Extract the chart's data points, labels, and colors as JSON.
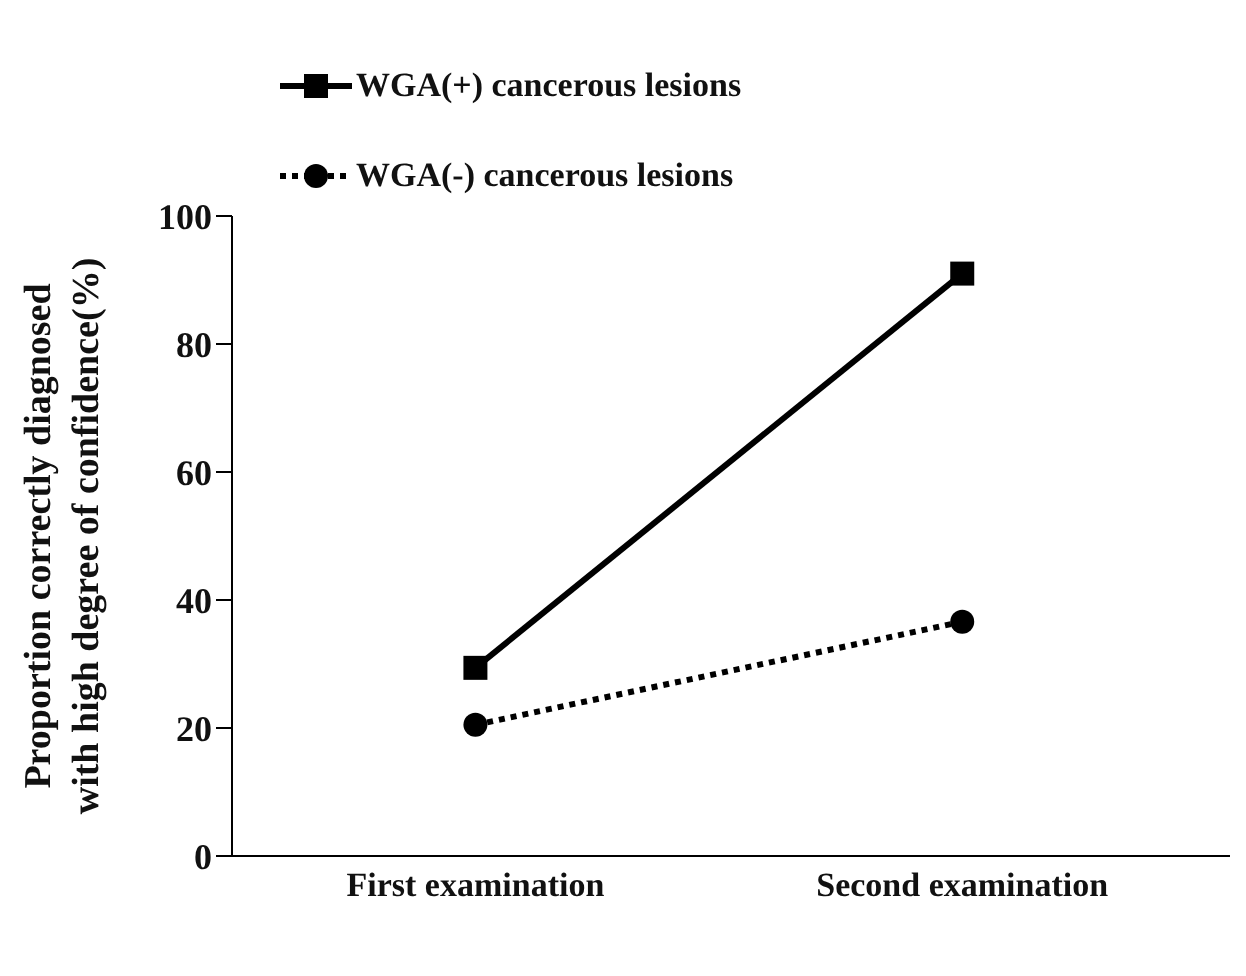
{
  "chart_data": {
    "type": "line",
    "ylabel": "Proportion correctly diagnosed\nwith high degree of confidence(%)",
    "categories": [
      "First examination",
      "Second examination"
    ],
    "series": [
      {
        "name": "WGA(+) cancerous lesions",
        "color": "#000000",
        "values": [
          29.4,
          91.0
        ],
        "marker": "square",
        "line_style": "solid"
      },
      {
        "name": "WGA(-) cancerous lesions",
        "color": "#000000",
        "values": [
          20.5,
          36.6
        ],
        "marker": "circle",
        "line_style": "dotted"
      }
    ],
    "ylim": [
      0,
      100
    ],
    "yticks": [
      0,
      20,
      40,
      60,
      80,
      100
    ],
    "grid": false,
    "legend": "top left"
  }
}
